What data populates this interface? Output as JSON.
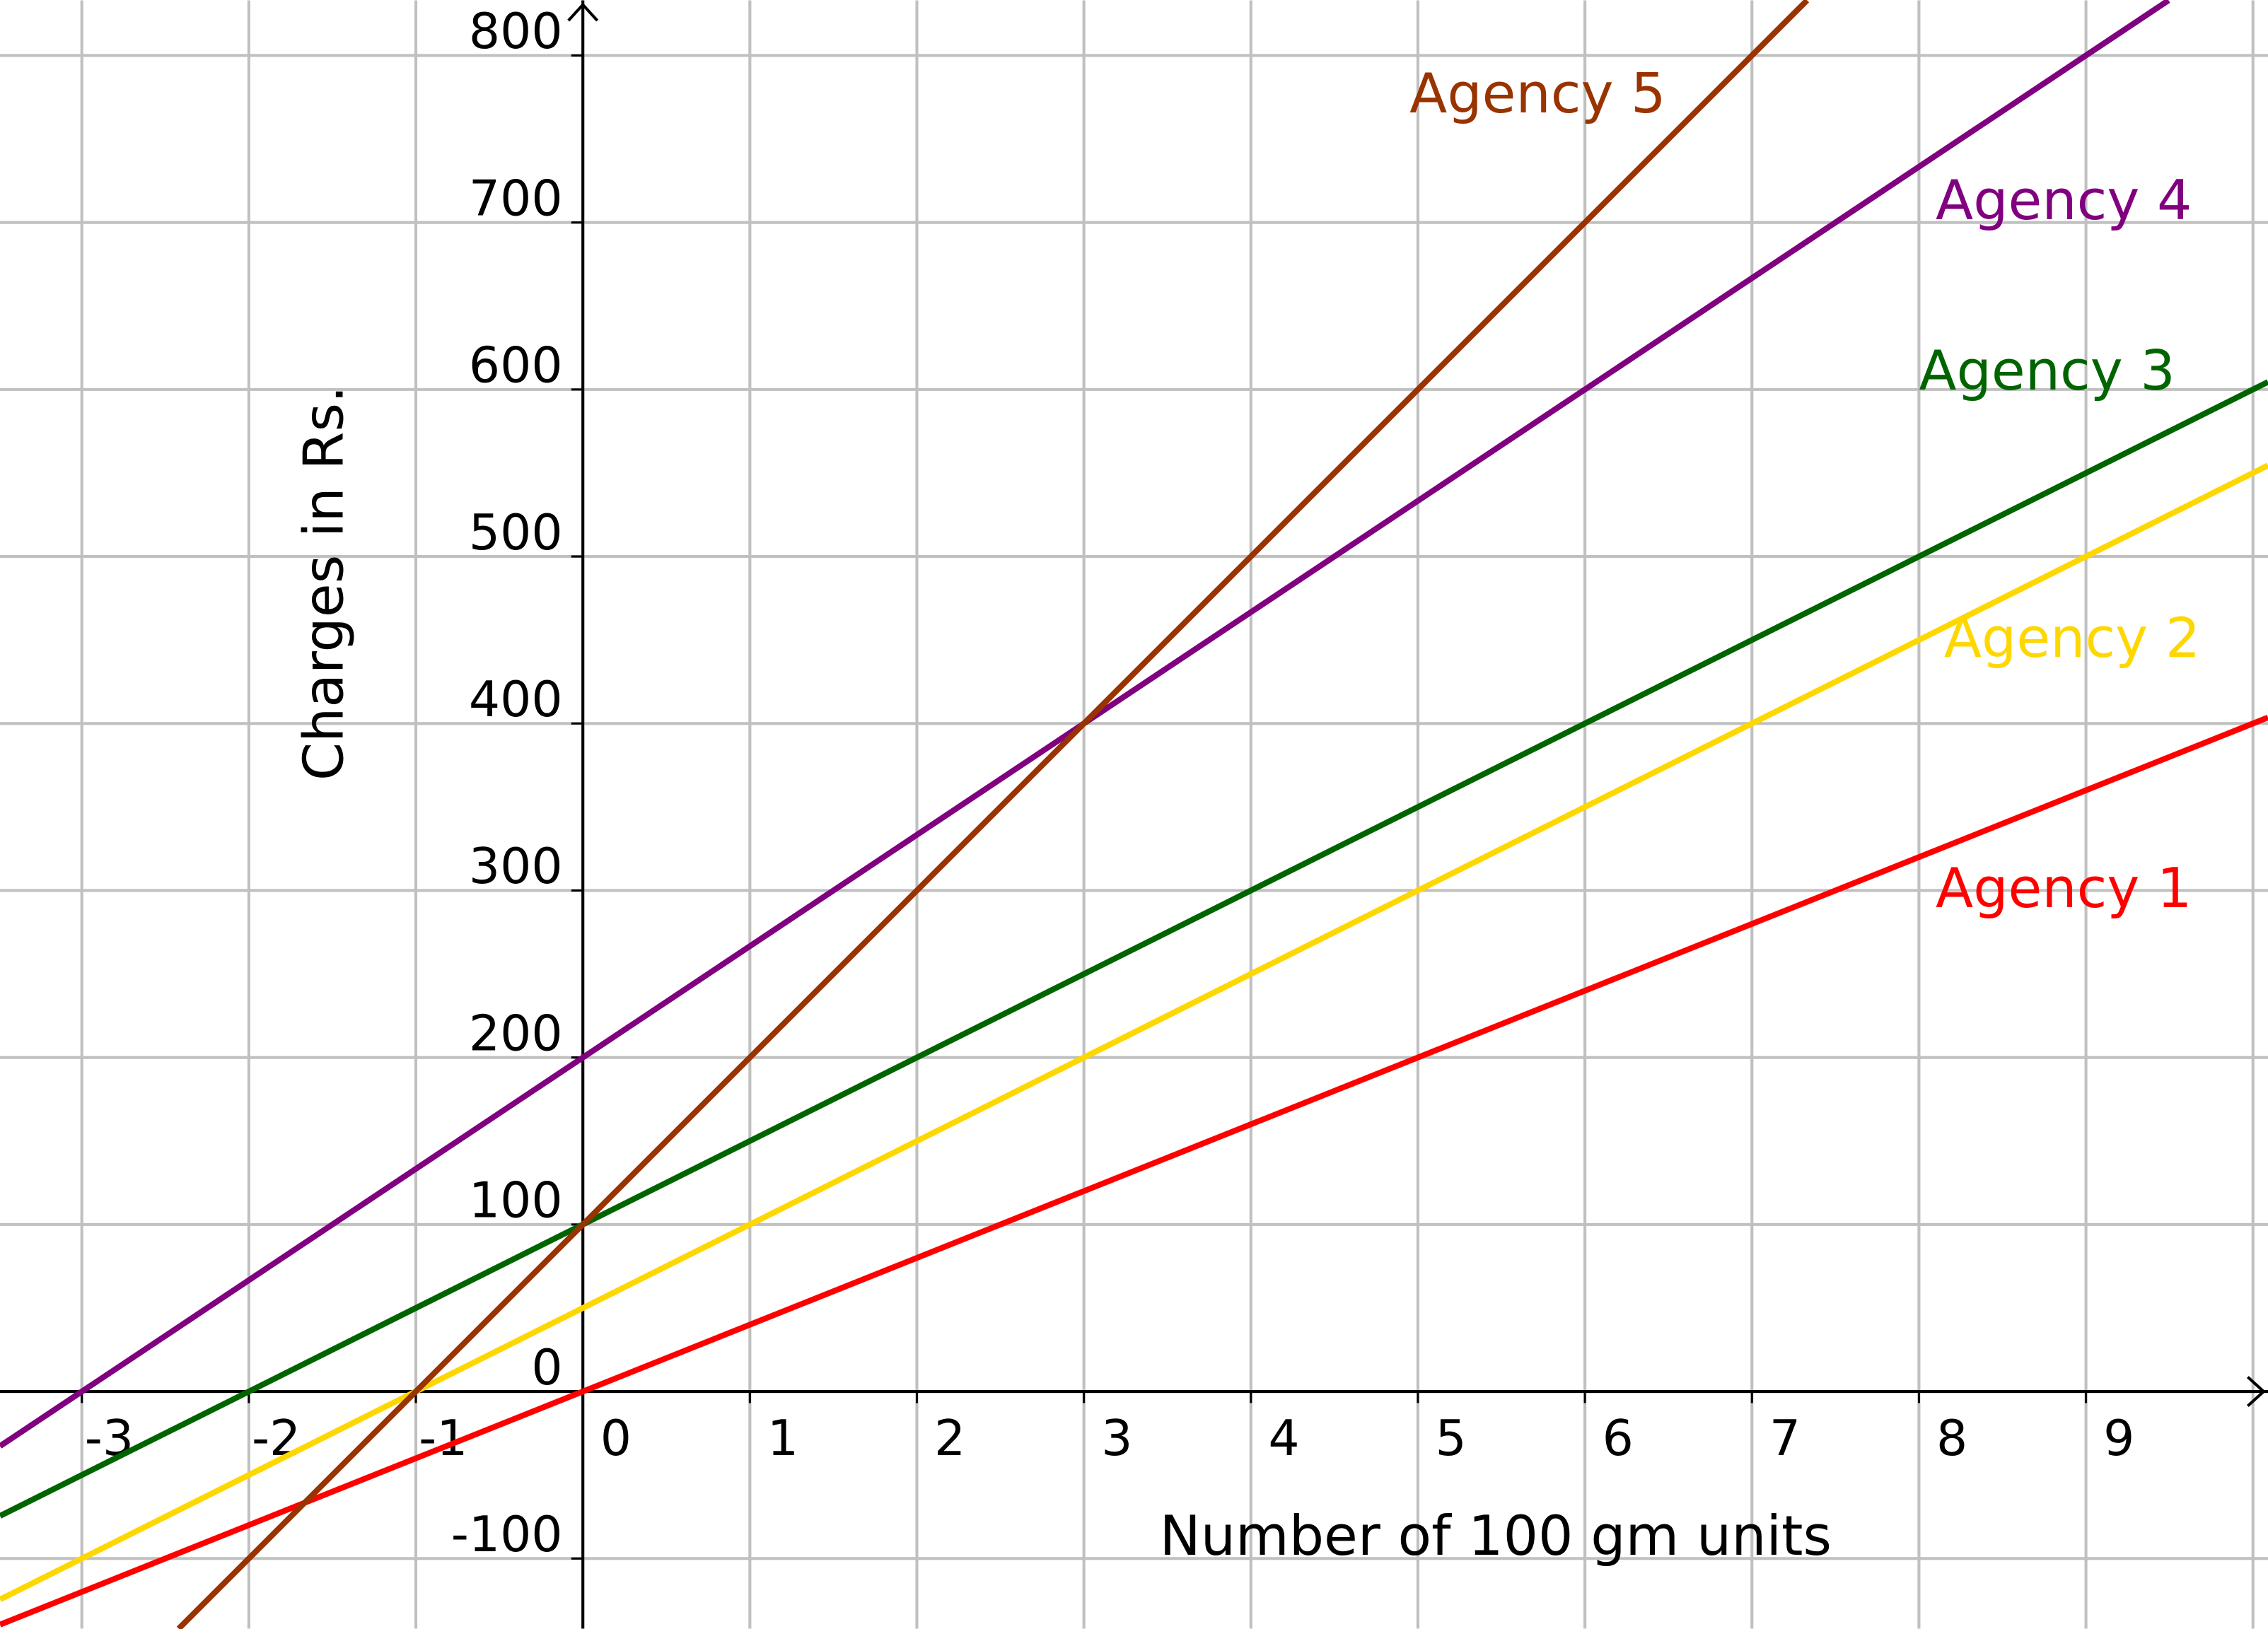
{
  "chart_data": {
    "type": "line",
    "xlabel": "Number of 100 gm units",
    "ylabel": "Charges in Rs.",
    "xlim": [
      -3.49,
      10.09
    ],
    "ylim": [
      -142,
      833
    ],
    "grid": true,
    "x_ticks": [
      -3,
      -2,
      -1,
      0,
      1,
      2,
      3,
      4,
      5,
      6,
      7,
      8,
      9
    ],
    "x_tick_labels": [
      "-3",
      "-2",
      "-1",
      "0",
      "1",
      "2",
      "3",
      "4",
      "5",
      "6",
      "7",
      "8",
      "9"
    ],
    "y_ticks": [
      -100,
      0,
      100,
      200,
      300,
      400,
      500,
      600,
      700,
      800
    ],
    "y_tick_labels": [
      "-100",
      "0",
      "100",
      "200",
      "300",
      "400",
      "500",
      "600",
      "700",
      "800"
    ],
    "series": [
      {
        "name": "Agency 1",
        "color": "#ff0000",
        "x": [
          -3.49,
          10.09
        ],
        "y": [
          -139.6,
          403.6
        ],
        "label_at": [
          8.1,
          290
        ]
      },
      {
        "name": "Agency 2",
        "color": "#ffd700",
        "x": [
          -3.49,
          10.09
        ],
        "y": [
          -124.5,
          554.5
        ],
        "label_at": [
          8.15,
          440
        ]
      },
      {
        "name": "Agency 3",
        "color": "#006400",
        "x": [
          -3.49,
          10.09
        ],
        "y": [
          -74.5,
          604.5
        ],
        "label_at": [
          8.0,
          600
        ]
      },
      {
        "name": "Agency 4",
        "color": "#800080",
        "x": [
          -3.49,
          10.09
        ],
        "y": [
          -32.7,
          872.7
        ],
        "label_at": [
          8.1,
          702
        ]
      },
      {
        "name": "Agency 5",
        "color": "#993300",
        "x": [
          -3.49,
          10.09
        ],
        "y": [
          -249,
          1109
        ],
        "label_at": [
          4.95,
          766
        ]
      }
    ]
  }
}
